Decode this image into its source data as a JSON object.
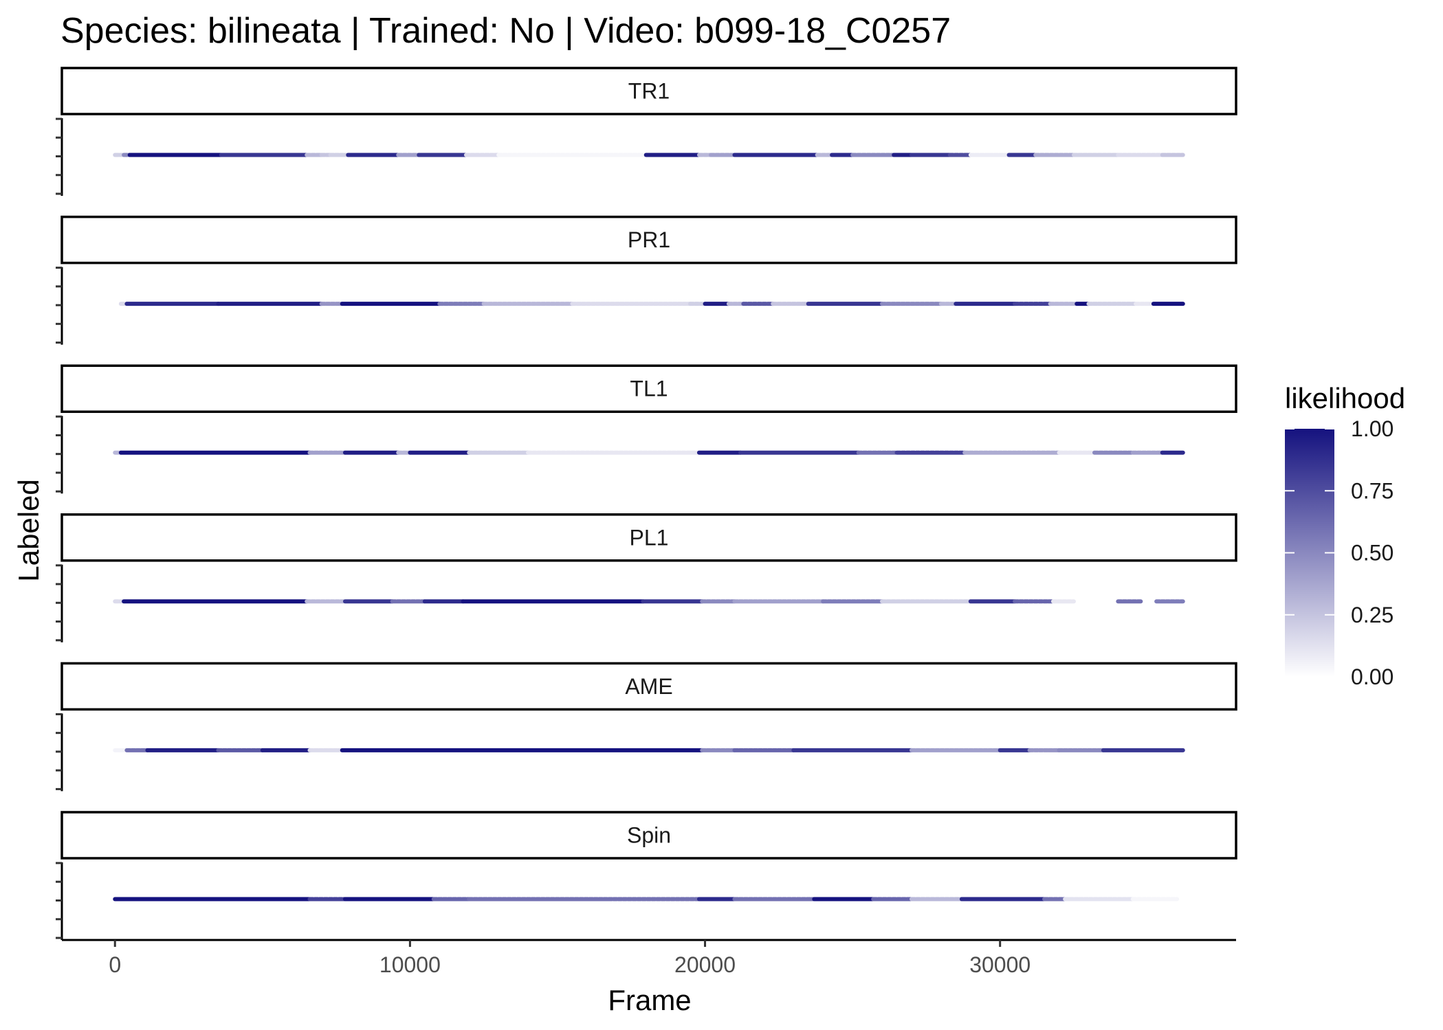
{
  "chart_data": {
    "type": "scatter",
    "title": "Species: bilineata | Trained: No | Video: b099-18_C0257",
    "xlabel": "Frame",
    "ylabel": "Labeled",
    "xlim": [
      -1800,
      38000
    ],
    "x_ticks": [
      0,
      10000,
      20000,
      30000
    ],
    "x_tick_labels": [
      "0",
      "10000",
      "20000",
      "30000"
    ],
    "grid": false,
    "legend": {
      "title": "likelihood",
      "position": "right",
      "type": "colorbar",
      "ticks": [
        1.0,
        0.75,
        0.5,
        0.25,
        0.0
      ],
      "tick_labels": [
        "1.00",
        "0.75",
        "0.50",
        "0.25",
        "0.00"
      ],
      "color_low": "#ffffff",
      "color_high": "#15127f"
    },
    "point_color": "#15127f",
    "facets": [
      {
        "label": "TR1",
        "segments": [
          [
            0,
            300,
            0.2
          ],
          [
            300,
            500,
            0.5
          ],
          [
            500,
            3600,
            1.0
          ],
          [
            3600,
            6500,
            0.85
          ],
          [
            6500,
            7000,
            0.3
          ],
          [
            7000,
            7300,
            0.25
          ],
          [
            7300,
            7900,
            0.2
          ],
          [
            7900,
            9600,
            0.9
          ],
          [
            9600,
            10300,
            0.4
          ],
          [
            10300,
            11900,
            0.85
          ],
          [
            11900,
            13000,
            0.15
          ],
          [
            13000,
            18000,
            0.04
          ],
          [
            18000,
            19800,
            0.95
          ],
          [
            19800,
            20200,
            0.3
          ],
          [
            20200,
            21000,
            0.4
          ],
          [
            21000,
            23800,
            0.9
          ],
          [
            23800,
            24300,
            0.3
          ],
          [
            24300,
            25000,
            0.9
          ],
          [
            25000,
            26400,
            0.5
          ],
          [
            26400,
            27000,
            0.95
          ],
          [
            27000,
            28300,
            0.85
          ],
          [
            28300,
            29000,
            0.75
          ],
          [
            29000,
            30300,
            0.08
          ],
          [
            30300,
            31200,
            0.85
          ],
          [
            31200,
            32500,
            0.35
          ],
          [
            32500,
            34000,
            0.2
          ],
          [
            34000,
            35500,
            0.15
          ],
          [
            35500,
            36200,
            0.25
          ]
        ]
      },
      {
        "label": "PR1",
        "segments": [
          [
            200,
            400,
            0.15
          ],
          [
            400,
            3500,
            0.9
          ],
          [
            3500,
            7000,
            0.95
          ],
          [
            7000,
            7700,
            0.45
          ],
          [
            7700,
            11000,
            1.0
          ],
          [
            11000,
            12500,
            0.55
          ],
          [
            12500,
            15500,
            0.3
          ],
          [
            15500,
            19500,
            0.15
          ],
          [
            19500,
            20000,
            0.2
          ],
          [
            20000,
            20800,
            0.95
          ],
          [
            20800,
            21300,
            0.3
          ],
          [
            21300,
            22300,
            0.7
          ],
          [
            22300,
            23500,
            0.25
          ],
          [
            23500,
            26000,
            0.85
          ],
          [
            26000,
            28000,
            0.5
          ],
          [
            28000,
            28500,
            0.3
          ],
          [
            28500,
            30500,
            0.9
          ],
          [
            30500,
            31700,
            0.8
          ],
          [
            31700,
            32600,
            0.3
          ],
          [
            32600,
            33000,
            1.0
          ],
          [
            33000,
            34600,
            0.2
          ],
          [
            34600,
            35200,
            0.1
          ],
          [
            35200,
            36200,
            1.0
          ]
        ]
      },
      {
        "label": "TL1",
        "segments": [
          [
            0,
            200,
            0.3
          ],
          [
            200,
            6600,
            1.0
          ],
          [
            6600,
            7800,
            0.4
          ],
          [
            7800,
            9600,
            0.95
          ],
          [
            9600,
            10000,
            0.3
          ],
          [
            10000,
            12000,
            0.95
          ],
          [
            12000,
            14000,
            0.2
          ],
          [
            14000,
            19800,
            0.1
          ],
          [
            19800,
            21200,
            0.95
          ],
          [
            21200,
            25200,
            0.85
          ],
          [
            25200,
            26500,
            0.6
          ],
          [
            26500,
            28800,
            0.8
          ],
          [
            28800,
            32000,
            0.35
          ],
          [
            32000,
            33200,
            0.1
          ],
          [
            33200,
            34500,
            0.5
          ],
          [
            34500,
            35500,
            0.4
          ],
          [
            35500,
            36200,
            0.9
          ]
        ]
      },
      {
        "label": "PL1",
        "segments": [
          [
            0,
            300,
            0.15
          ],
          [
            300,
            6500,
            1.0
          ],
          [
            6500,
            7800,
            0.3
          ],
          [
            7800,
            9400,
            0.85
          ],
          [
            9400,
            10500,
            0.6
          ],
          [
            10500,
            11800,
            0.9
          ],
          [
            11800,
            17900,
            1.0
          ],
          [
            17900,
            19900,
            0.85
          ],
          [
            19900,
            21000,
            0.5
          ],
          [
            21000,
            24000,
            0.4
          ],
          [
            24000,
            26000,
            0.55
          ],
          [
            26000,
            29000,
            0.2
          ],
          [
            29000,
            30500,
            0.85
          ],
          [
            30500,
            31800,
            0.65
          ],
          [
            31800,
            32500,
            0.1
          ],
          [
            34000,
            34800,
            0.6
          ],
          [
            35300,
            36200,
            0.55
          ]
        ]
      },
      {
        "label": "AME",
        "segments": [
          [
            0,
            400,
            0.05
          ],
          [
            400,
            1100,
            0.6
          ],
          [
            1100,
            3500,
            0.95
          ],
          [
            3500,
            5000,
            0.7
          ],
          [
            5000,
            6600,
            0.95
          ],
          [
            6600,
            7700,
            0.15
          ],
          [
            7700,
            19900,
            1.0
          ],
          [
            19900,
            21000,
            0.5
          ],
          [
            21000,
            23000,
            0.65
          ],
          [
            23000,
            27000,
            0.85
          ],
          [
            27000,
            30000,
            0.4
          ],
          [
            30000,
            31000,
            0.85
          ],
          [
            31000,
            32000,
            0.45
          ],
          [
            32000,
            33500,
            0.5
          ],
          [
            33500,
            36200,
            0.85
          ]
        ]
      },
      {
        "label": "Spin",
        "segments": [
          [
            0,
            6600,
            1.0
          ],
          [
            6600,
            7800,
            0.8
          ],
          [
            7800,
            10800,
            1.0
          ],
          [
            10800,
            12000,
            0.65
          ],
          [
            12000,
            19800,
            0.6
          ],
          [
            19800,
            21000,
            0.9
          ],
          [
            21000,
            23700,
            0.6
          ],
          [
            23700,
            25700,
            1.0
          ],
          [
            25700,
            27000,
            0.65
          ],
          [
            27000,
            28700,
            0.3
          ],
          [
            28700,
            31500,
            0.9
          ],
          [
            31500,
            32200,
            0.6
          ],
          [
            32200,
            34500,
            0.12
          ],
          [
            34500,
            36000,
            0.04
          ]
        ]
      }
    ]
  }
}
